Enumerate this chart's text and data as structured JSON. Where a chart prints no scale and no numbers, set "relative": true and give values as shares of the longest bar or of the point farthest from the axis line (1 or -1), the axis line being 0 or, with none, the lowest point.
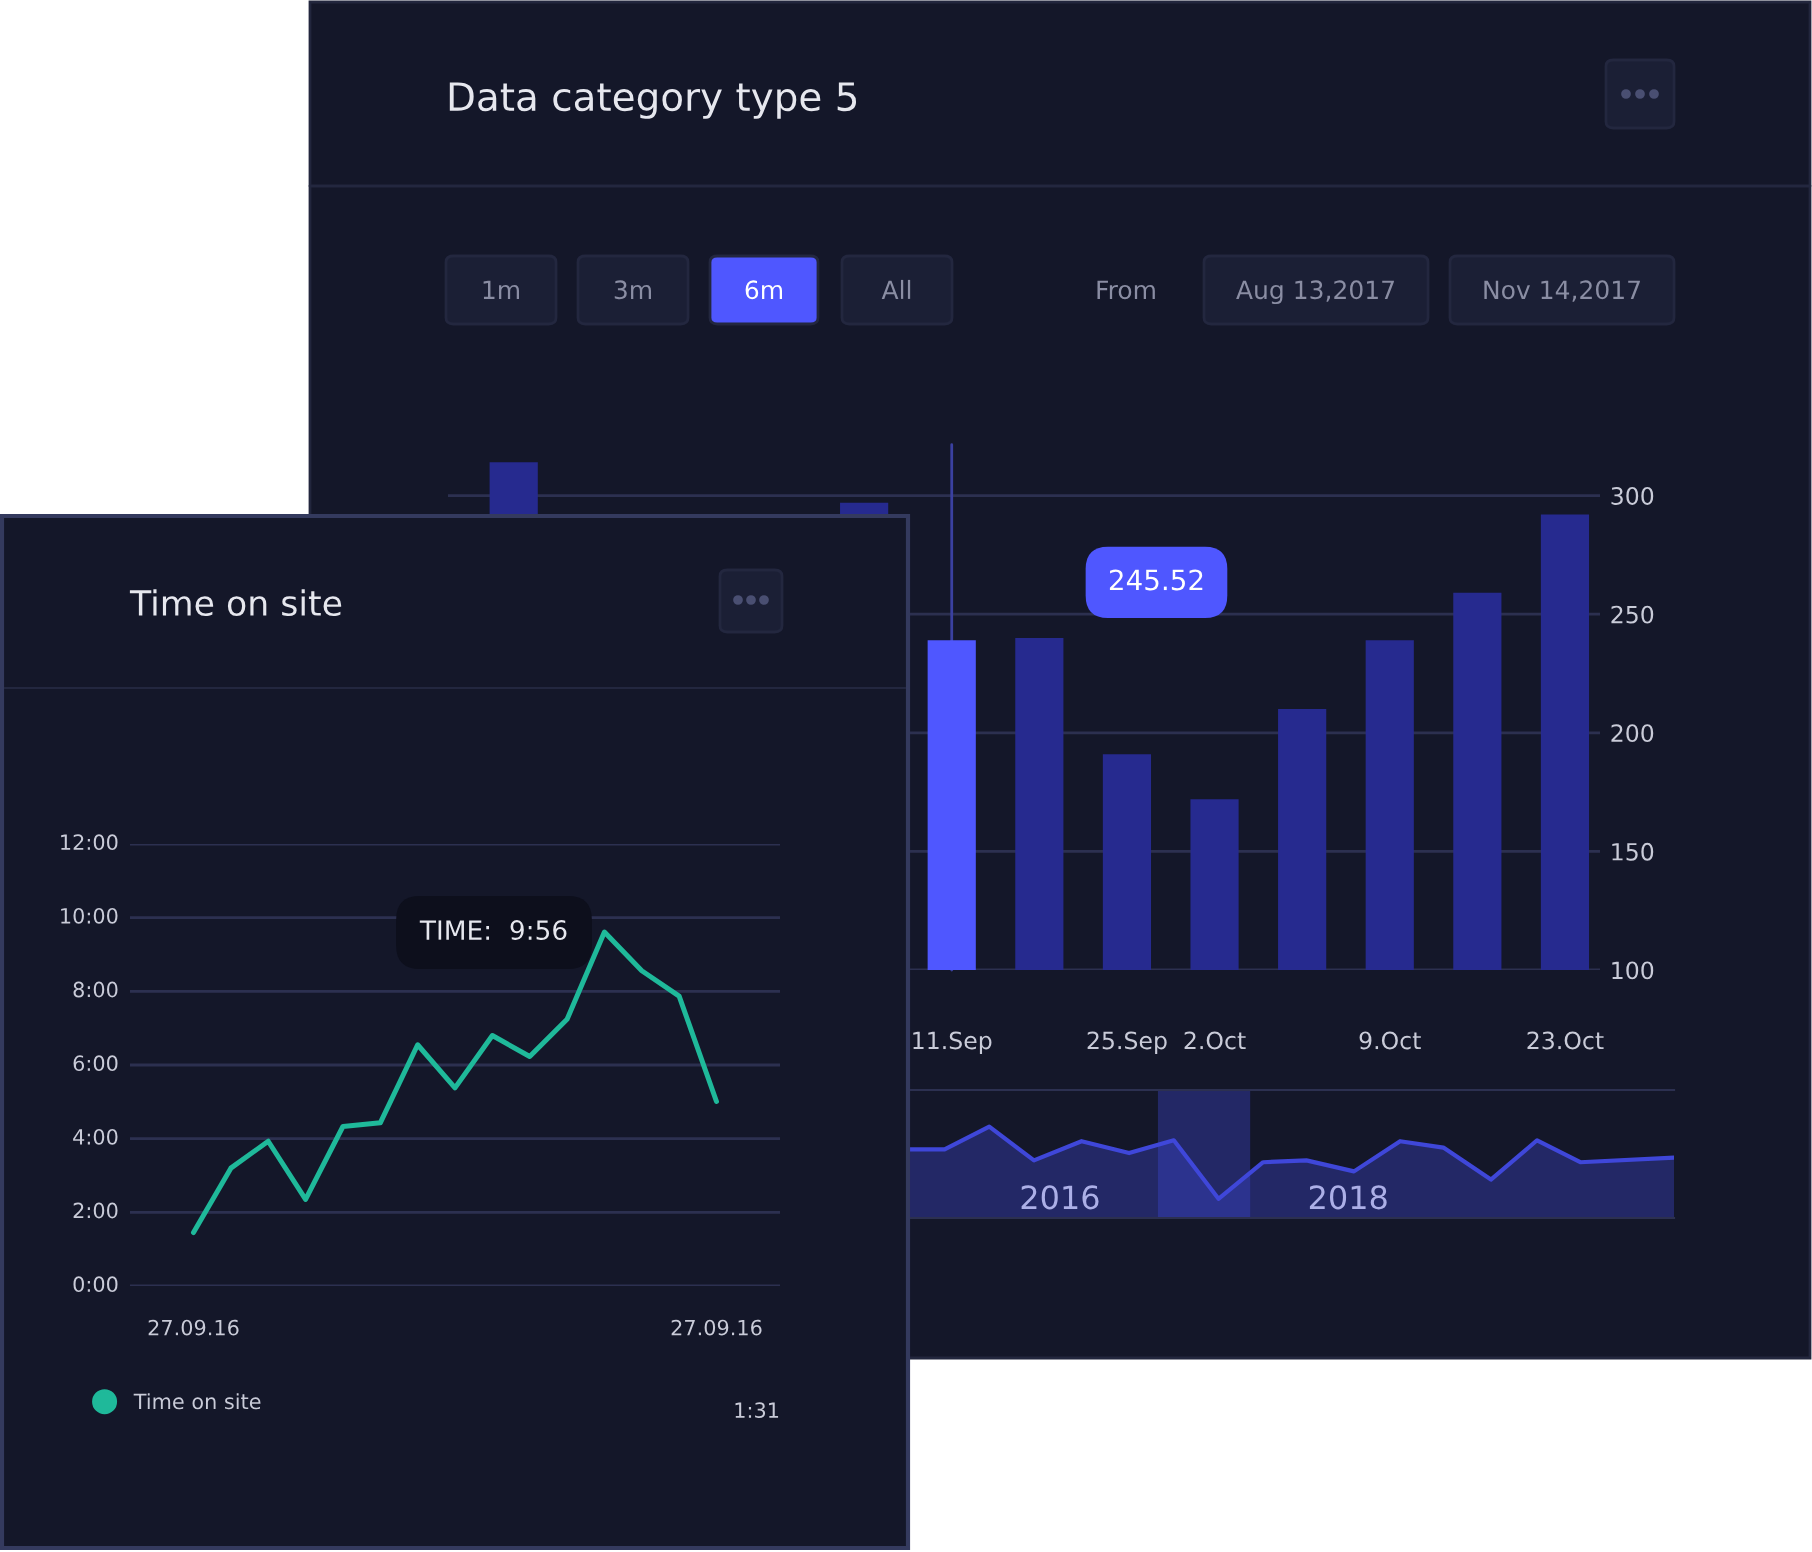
{
  "chart_data": [
    {
      "type": "bar",
      "title": "Data category type 5",
      "annotations": [
        "1m",
        "3m",
        "6m",
        "All",
        "From",
        "Aug 13,2017",
        "Nov 14,2017",
        "245.52"
      ],
      "categories": [
        null,
        null,
        null,
        null,
        null,
        "11.Sep",
        null,
        "25.Sep",
        "2.Oct",
        null,
        "9.Oct",
        null,
        "23.Oct"
      ],
      "values": [
        314,
        null,
        null,
        null,
        297,
        239,
        240,
        191,
        172,
        210,
        239,
        259,
        292
      ],
      "colors": [
        "#262a8f",
        "#262a8f",
        "#262a8f",
        "#262a8f",
        "#262a8f",
        "#4f57ff",
        "#262a8f",
        "#262a8f",
        "#262a8f",
        "#262a8f",
        "#262a8f",
        "#262a8f",
        "#262a8f"
      ],
      "ylim": [
        100,
        315
      ],
      "yticks": [
        100,
        150,
        200,
        250,
        300
      ],
      "grid": "y",
      "ref_lines": [
        {
          "axis": "x",
          "value": "11.Sep",
          "label": null,
          "color": "#3a40a0"
        }
      ]
    },
    {
      "type": "area",
      "relative": true,
      "x": [
        2014.96,
        2015.2,
        2015.51,
        2015.82,
        2016.15,
        2016.48,
        2016.79,
        2017.1,
        2017.41,
        2017.71,
        2018.04,
        2018.36,
        2018.66,
        2018.99,
        2019.31,
        2019.61,
        2020.26
      ],
      "values": [
        0.75,
        0.75,
        1.0,
        0.63,
        0.84,
        0.71,
        0.85,
        0.21,
        0.61,
        0.63,
        0.51,
        0.84,
        0.77,
        0.42,
        0.85,
        0.61,
        0.66
      ],
      "color": "#3f47d9",
      "xlim": [
        2014.96,
        2020.26
      ],
      "xticks": [
        2016,
        2018
      ],
      "bands": [
        {
          "axis": "x",
          "from": 2016.68,
          "to": 2017.32,
          "label": null,
          "color": "#2a3080"
        }
      ]
    },
    {
      "type": "line",
      "title": "Time on site",
      "annotations": [
        "TIME:  9:56",
        "1:31"
      ],
      "categories": [
        "27.09.16",
        null,
        null,
        null,
        null,
        null,
        null,
        null,
        null,
        null,
        null,
        null,
        null,
        null,
        "27.09.16"
      ],
      "series": [
        {
          "name": "Time on site",
          "color": "#1fb99a",
          "values": [
            1.45,
            3.2,
            3.93,
            2.35,
            4.33,
            4.43,
            6.55,
            5.38,
            6.8,
            6.23,
            7.24,
            9.61,
            8.56,
            7.87,
            5.01
          ]
        }
      ],
      "ylim": [
        0,
        12
      ],
      "yticks": [
        {
          "value": 0,
          "label": "0:00"
        },
        {
          "value": 2,
          "label": "2:00"
        },
        {
          "value": 4,
          "label": "4:00"
        },
        {
          "value": 6,
          "label": "6:00"
        },
        {
          "value": 8,
          "label": "8:00"
        },
        {
          "value": 10,
          "label": "10:00"
        },
        {
          "value": 12,
          "label": "12:00"
        }
      ],
      "grid": "y",
      "legend": "bottom",
      "marker": "none",
      "line_style": "solid"
    }
  ]
}
